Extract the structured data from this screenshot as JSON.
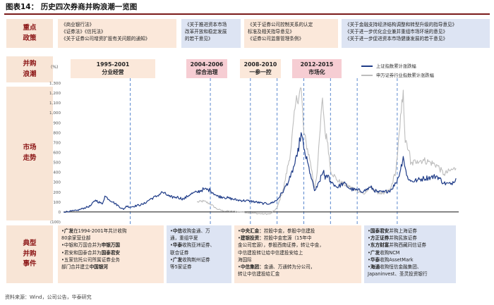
{
  "title": "图表14：  历史四次券商并购浪潮一览图",
  "source": "资料来源：Wind，公司公告，华泰研究",
  "row_labels": {
    "policy": [
      "重点",
      "政策"
    ],
    "wave": [
      "并购",
      "浪潮"
    ],
    "market": [
      "市场",
      "走势"
    ],
    "events": [
      "典型",
      "并购",
      "事件"
    ]
  },
  "policy_boxes": [
    [
      "《商业银行法》",
      "《证券法》《信托法》",
      "《关于证券公司增资扩股有关问题的通知》"
    ],
    [
      "《关于推进资本市场",
      "改革开放和稳定发展",
      "的若干意见》"
    ],
    [
      "《关于证券公司控制关系的认定",
      "标准及相关指导意见》",
      "《证券公司监督管理条例》"
    ],
    [
      "《关于金融支持经济结构调整和转型升级的指导意见》",
      "《关于进一步优化企业兼并重组市场环境的意见》",
      "《关于进一步促进资本市场健康发展的若干意见》"
    ]
  ],
  "periods": [
    {
      "years": "1995-2001",
      "name": "分业经营"
    },
    {
      "years": "2004-2006",
      "name": "综合治理"
    },
    {
      "years": "2008-2010",
      "name": "一参一控"
    },
    {
      "years": "2012-2015",
      "name": "市场化"
    }
  ],
  "legend": [
    "上证指数累计涨跌幅",
    "申万证券行业指数累计涨跌幅"
  ],
  "events": [
    [
      [
        {
          "t": "•"
        },
        {
          "t": "广发",
          "b": true
        },
        {
          "t": "在1994-2001年共计收购"
        }
      ],
      [
        {
          "t": "  80余家营业部"
        }
      ],
      [
        {
          "t": "•中银和万国合并为"
        },
        {
          "t": "申银万国",
          "b": true
        }
      ],
      [
        {
          "t": "•君安和国泰合并为"
        },
        {
          "t": "国泰君安",
          "b": true
        }
      ],
      [
        {
          "t": "•五家信托公司所属证券业务"
        }
      ],
      [
        {
          "t": "  部门合并建立"
        },
        {
          "t": "中国银河",
          "b": true
        }
      ]
    ],
    [
      [
        {
          "t": "•"
        },
        {
          "t": "中信",
          "b": true
        },
        {
          "t": "收购金通、万"
        }
      ],
      [
        {
          "t": "  通，重组华夏"
        }
      ],
      [
        {
          "t": "•"
        },
        {
          "t": "华泰",
          "b": true
        },
        {
          "t": "收购亚洲证券、"
        }
      ],
      [
        {
          "t": "  联合证券"
        }
      ],
      [
        {
          "t": "•"
        },
        {
          "t": "广发",
          "b": true
        },
        {
          "t": "收购荆州证券"
        }
      ],
      [
        {
          "t": "  等5家证券"
        }
      ]
    ],
    [
      [
        {
          "t": "•"
        },
        {
          "t": "中央汇金：",
          "b": true
        },
        {
          "t": "控股中金，参股中信建投"
        }
      ],
      [
        {
          "t": "•"
        },
        {
          "t": "建银投资：",
          "b": true
        },
        {
          "t": "控股中金宏源（15年中"
        }
      ],
      [
        {
          "t": "  金公司宏源），参股西南证券，转让中金，"
        }
      ],
      [
        {
          "t": "  中信建投转让给中信建投安给上"
        }
      ],
      [
        {
          "t": "  海国际"
        }
      ],
      [
        {
          "t": "•"
        },
        {
          "t": "中信集团：",
          "b": true
        },
        {
          "t": "金通、万通转为分公司，"
        }
      ],
      [
        {
          "t": "  转让中信建投给汇金"
        }
      ]
    ],
    [
      [
        {
          "t": "•"
        },
        {
          "t": "国泰君安",
          "b": true
        },
        {
          "t": "并购上海证券"
        }
      ],
      [
        {
          "t": "•"
        },
        {
          "t": "方正证券",
          "b": true
        },
        {
          "t": "并购民族证券"
        }
      ],
      [
        {
          "t": "•"
        },
        {
          "t": "东方财富",
          "b": true
        },
        {
          "t": "并购西藏同信证券"
        }
      ],
      [
        {
          "t": "•"
        },
        {
          "t": "广发",
          "b": true
        },
        {
          "t": "收购NCM"
        }
      ],
      [
        {
          "t": "•"
        },
        {
          "t": "华泰",
          "b": true
        },
        {
          "t": "收购AssetMark"
        }
      ],
      [
        {
          "t": "•"
        },
        {
          "t": "海通",
          "b": true
        },
        {
          "t": "收购恒信金融集团、"
        }
      ],
      [
        {
          "t": "  Japaninvest、圣灵投资银行"
        }
      ]
    ]
  ],
  "chart_data": {
    "type": "line",
    "x_range": [
      1990,
      2019.5
    ],
    "ylim": [
      -100,
      1300
    ],
    "ylabel": "(%)",
    "yticks": [
      -100,
      0,
      100,
      200,
      300,
      400,
      500,
      600,
      700,
      800,
      900,
      1000,
      1100,
      1200,
      1300
    ],
    "ytick_labels": [
      "(100)",
      "0",
      "100",
      "200",
      "300",
      "400",
      "500",
      "600",
      "700",
      "800",
      "900",
      "1,000",
      "1,100",
      "1,200",
      "1,300"
    ],
    "grid": false,
    "legend_position": "top-right",
    "period_marker_years": [
      1995,
      2001,
      2004,
      2006,
      2008,
      2010,
      2012,
      2015
    ],
    "series": [
      {
        "name": "上证指数累计涨跌幅",
        "color": "#1f3c88",
        "x": [
          1990.0,
          1991.0,
          1992.0,
          1992.4,
          1992.9,
          1993.1,
          1993.7,
          1994.5,
          1994.7,
          1995.0,
          1996.0,
          1996.5,
          1997.0,
          1997.4,
          1998.0,
          1998.5,
          1999.0,
          1999.5,
          2000.0,
          2000.5,
          2001.0,
          2001.5,
          2002.0,
          2003.0,
          2004.0,
          2005.0,
          2005.5,
          2006.0,
          2006.5,
          2007.0,
          2007.5,
          2007.8,
          2008.0,
          2008.5,
          2008.8,
          2009.0,
          2009.5,
          2009.6,
          2009.8,
          2010.0,
          2010.5,
          2011.0,
          2011.5,
          2012.0,
          2012.5,
          2013.0,
          2013.5,
          2014.0,
          2014.5,
          2014.9,
          2015.2,
          2015.45,
          2015.7,
          2016.0,
          2016.5,
          2017.0,
          2017.5,
          2018.0,
          2018.5,
          2019.0,
          2019.4
        ],
        "y": [
          0,
          15,
          60,
          120,
          80,
          160,
          100,
          25,
          60,
          50,
          80,
          130,
          160,
          200,
          150,
          150,
          130,
          180,
          200,
          230,
          220,
          160,
          150,
          120,
          110,
          85,
          85,
          120,
          220,
          350,
          560,
          800,
          640,
          380,
          215,
          250,
          420,
          330,
          370,
          310,
          250,
          290,
          230,
          220,
          210,
          250,
          200,
          200,
          220,
          290,
          400,
          560,
          370,
          310,
          320,
          340,
          350,
          360,
          290,
          280,
          340
        ]
      },
      {
        "name": "申万证券行业指数累计涨跌幅",
        "color": "#bdbdbd",
        "x": [
          2000.0,
          2000.5,
          2001.0,
          2001.5,
          2002.0,
          2003.0,
          2004.0,
          2005.0,
          2005.5,
          2006.0,
          2006.5,
          2007.0,
          2007.4,
          2007.8,
          2008.0,
          2008.5,
          2008.8,
          2009.0,
          2009.4,
          2009.6,
          2009.8,
          2010.0,
          2010.5,
          2011.0,
          2012.0,
          2012.5,
          2013.0,
          2013.5,
          2014.0,
          2014.5,
          2014.9,
          2015.2,
          2015.45,
          2015.6,
          2015.9,
          2016.0,
          2016.5,
          2017.0,
          2017.5,
          2018.0,
          2018.5,
          2019.0,
          2019.4
        ],
        "y": [
          100,
          110,
          80,
          30,
          10,
          5,
          -10,
          -20,
          -20,
          40,
          250,
          600,
          1100,
          1250,
          800,
          500,
          240,
          400,
          1150,
          800,
          700,
          420,
          320,
          280,
          220,
          180,
          250,
          200,
          180,
          230,
          420,
          850,
          1230,
          700,
          620,
          480,
          520,
          520,
          500,
          470,
          380,
          420,
          440
        ]
      }
    ]
  }
}
